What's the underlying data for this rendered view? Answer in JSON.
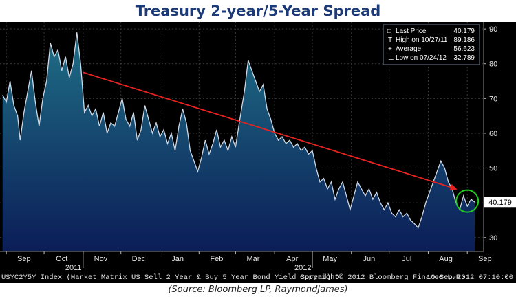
{
  "title": "Treasury 2-year/5-Year Spread",
  "caption": "(Source: Bloomberg LP, RaymondJames)",
  "footer": {
    "index": "USYC2Y5Y Index (Market Matrix US Sell 2 Year & Buy 5 Year Bond Yield Spread)  D",
    "copyright": "Copyright© 2012 Bloomberg Finance L.P.",
    "timestamp": "10-Sep-2012 07:10:00"
  },
  "colors": {
    "line": "#cfd8e4",
    "trend": "#e8231f",
    "circle": "#22cc22",
    "fill_top": "#1f6f86",
    "fill_bottom": "#0b1d57"
  },
  "legend": [
    {
      "icon": "□",
      "label": "Last Price",
      "value": "40.179"
    },
    {
      "icon": "T",
      "label": "High on 10/27/11",
      "value": "89.186"
    },
    {
      "icon": "+",
      "label": "Average",
      "value": "56.623"
    },
    {
      "icon": "⊥",
      "label": "Low on 07/24/12",
      "value": "32.789"
    }
  ],
  "chart_data": {
    "type": "area",
    "title": "Treasury 2-year/5-Year Spread",
    "ylim": [
      26,
      92
    ],
    "yticks": [
      30,
      40,
      50,
      60,
      70,
      80,
      90
    ],
    "ytick_labels": [
      "30",
      "40",
      "50",
      "60",
      "70",
      "80",
      "90"
    ],
    "xlim": [
      "2011-08-27",
      "2012-09-14"
    ],
    "xticks": [
      {
        "date": "2011-09-01",
        "label": "Sep"
      },
      {
        "date": "2011-10-01",
        "label": "Oct"
      },
      {
        "date": "2011-11-01",
        "label": "Nov"
      },
      {
        "date": "2011-12-01",
        "label": "Dec"
      },
      {
        "date": "2012-01-01",
        "label": "Jan"
      },
      {
        "date": "2012-02-01",
        "label": "Feb"
      },
      {
        "date": "2012-03-01",
        "label": "Mar"
      },
      {
        "date": "2012-04-01",
        "label": "Apr"
      },
      {
        "date": "2012-05-01",
        "label": "May"
      },
      {
        "date": "2012-06-01",
        "label": "Jun"
      },
      {
        "date": "2012-07-01",
        "label": "Jul"
      },
      {
        "date": "2012-08-01",
        "label": "Aug"
      },
      {
        "date": "2012-09-01",
        "label": "Sep"
      }
    ],
    "year_labels": [
      {
        "date": "2011-11-01",
        "label": "2011"
      },
      {
        "date": "2012-05-01",
        "label": "2012"
      }
    ],
    "last_value_label": "40.179",
    "series": [
      {
        "points": [
          [
            "2011-08-29",
            71
          ],
          [
            "2011-09-01",
            69
          ],
          [
            "2011-09-04",
            75
          ],
          [
            "2011-09-07",
            68
          ],
          [
            "2011-09-10",
            65
          ],
          [
            "2011-09-12",
            58
          ],
          [
            "2011-09-15",
            66
          ],
          [
            "2011-09-18",
            72
          ],
          [
            "2011-09-21",
            78
          ],
          [
            "2011-09-24",
            69
          ],
          [
            "2011-09-27",
            62
          ],
          [
            "2011-09-30",
            70
          ],
          [
            "2011-10-03",
            75
          ],
          [
            "2011-10-06",
            86
          ],
          [
            "2011-10-09",
            82
          ],
          [
            "2011-10-12",
            84
          ],
          [
            "2011-10-15",
            78
          ],
          [
            "2011-10-18",
            82
          ],
          [
            "2011-10-21",
            76
          ],
          [
            "2011-10-24",
            80
          ],
          [
            "2011-10-27",
            89
          ],
          [
            "2011-10-30",
            80
          ],
          [
            "2011-11-02",
            66
          ],
          [
            "2011-11-05",
            68
          ],
          [
            "2011-11-08",
            65
          ],
          [
            "2011-11-11",
            67
          ],
          [
            "2011-11-14",
            62
          ],
          [
            "2011-11-17",
            66
          ],
          [
            "2011-11-20",
            60
          ],
          [
            "2011-11-23",
            63
          ],
          [
            "2011-11-26",
            62
          ],
          [
            "2011-11-29",
            66
          ],
          [
            "2011-12-02",
            70
          ],
          [
            "2011-12-05",
            64
          ],
          [
            "2011-12-08",
            62
          ],
          [
            "2011-12-11",
            66
          ],
          [
            "2011-12-14",
            58
          ],
          [
            "2011-12-17",
            61
          ],
          [
            "2011-12-20",
            68
          ],
          [
            "2011-12-23",
            64
          ],
          [
            "2011-12-26",
            60
          ],
          [
            "2011-12-29",
            63
          ],
          [
            "2012-01-01",
            59
          ],
          [
            "2012-01-04",
            61
          ],
          [
            "2012-01-07",
            57
          ],
          [
            "2012-01-10",
            60
          ],
          [
            "2012-01-13",
            55
          ],
          [
            "2012-01-16",
            62
          ],
          [
            "2012-01-19",
            67
          ],
          [
            "2012-01-22",
            63
          ],
          [
            "2012-01-25",
            55
          ],
          [
            "2012-01-28",
            52
          ],
          [
            "2012-01-31",
            49
          ],
          [
            "2012-02-03",
            53
          ],
          [
            "2012-02-06",
            58
          ],
          [
            "2012-02-09",
            54
          ],
          [
            "2012-02-12",
            57
          ],
          [
            "2012-02-15",
            61
          ],
          [
            "2012-02-18",
            56
          ],
          [
            "2012-02-21",
            58
          ],
          [
            "2012-02-24",
            55
          ],
          [
            "2012-02-27",
            59
          ],
          [
            "2012-03-01",
            56
          ],
          [
            "2012-03-04",
            63
          ],
          [
            "2012-03-08",
            72
          ],
          [
            "2012-03-11",
            81
          ],
          [
            "2012-03-14",
            78
          ],
          [
            "2012-03-17",
            75
          ],
          [
            "2012-03-20",
            72
          ],
          [
            "2012-03-23",
            74
          ],
          [
            "2012-03-26",
            67
          ],
          [
            "2012-03-29",
            64
          ],
          [
            "2012-04-01",
            60
          ],
          [
            "2012-04-04",
            58
          ],
          [
            "2012-04-07",
            59
          ],
          [
            "2012-04-10",
            57
          ],
          [
            "2012-04-13",
            58
          ],
          [
            "2012-04-16",
            56
          ],
          [
            "2012-04-19",
            57
          ],
          [
            "2012-04-22",
            55
          ],
          [
            "2012-04-25",
            56
          ],
          [
            "2012-04-28",
            54
          ],
          [
            "2012-05-01",
            55
          ],
          [
            "2012-05-04",
            50
          ],
          [
            "2012-05-07",
            46
          ],
          [
            "2012-05-10",
            47
          ],
          [
            "2012-05-13",
            44
          ],
          [
            "2012-05-16",
            46
          ],
          [
            "2012-05-19",
            41
          ],
          [
            "2012-05-22",
            44
          ],
          [
            "2012-05-25",
            46
          ],
          [
            "2012-05-28",
            42
          ],
          [
            "2012-05-31",
            38
          ],
          [
            "2012-06-03",
            42
          ],
          [
            "2012-06-06",
            46
          ],
          [
            "2012-06-09",
            44
          ],
          [
            "2012-06-12",
            42
          ],
          [
            "2012-06-15",
            44
          ],
          [
            "2012-06-18",
            41
          ],
          [
            "2012-06-21",
            43
          ],
          [
            "2012-06-24",
            40
          ],
          [
            "2012-06-27",
            38
          ],
          [
            "2012-06-30",
            40
          ],
          [
            "2012-07-03",
            37
          ],
          [
            "2012-07-06",
            36
          ],
          [
            "2012-07-09",
            38
          ],
          [
            "2012-07-12",
            36
          ],
          [
            "2012-07-15",
            37
          ],
          [
            "2012-07-18",
            35
          ],
          [
            "2012-07-21",
            34
          ],
          [
            "2012-07-24",
            32.8
          ],
          [
            "2012-07-27",
            36
          ],
          [
            "2012-07-30",
            40
          ],
          [
            "2012-08-02",
            43
          ],
          [
            "2012-08-05",
            46
          ],
          [
            "2012-08-08",
            49
          ],
          [
            "2012-08-11",
            52
          ],
          [
            "2012-08-14",
            50
          ],
          [
            "2012-08-17",
            46
          ],
          [
            "2012-08-20",
            44
          ],
          [
            "2012-08-23",
            40
          ],
          [
            "2012-08-26",
            38
          ],
          [
            "2012-08-29",
            42
          ],
          [
            "2012-09-01",
            39
          ],
          [
            "2012-09-04",
            41
          ],
          [
            "2012-09-07",
            40.179
          ]
        ]
      }
    ],
    "annotations": [
      {
        "type": "arrow",
        "from": [
          "2011-11-01",
          77.5
        ],
        "to": [
          "2012-08-23",
          44
        ]
      },
      {
        "type": "circle",
        "center": [
          "2012-09-01",
          40.5
        ]
      }
    ]
  }
}
